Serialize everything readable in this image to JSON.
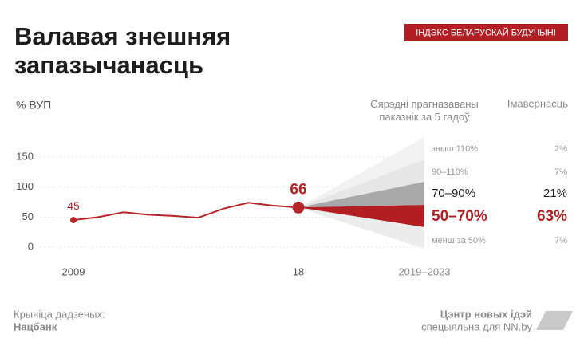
{
  "badge": "ІНДЭКС БЕЛАРУСКАЙ БУДУЧЫНІ",
  "source": {
    "label": "Крыніца дадзеных:",
    "name": "Нацбанк"
  },
  "credit": {
    "org": "Цэнтр новых ідэй",
    "note": "спецыяльна для NN.by"
  },
  "chart_data": {
    "type": "line",
    "title": "Валавая знешняя запазычанасць",
    "ylabel": "% ВУП",
    "categories": [
      "2009",
      null,
      null,
      null,
      null,
      null,
      null,
      null,
      null,
      "18"
    ],
    "values": [
      45,
      50,
      58,
      54,
      52,
      49,
      64,
      74,
      69,
      66
    ],
    "value_labels": {
      "0": "45",
      "9": "66"
    },
    "color": "#b5262b",
    "ylim": [
      0,
      150
    ],
    "yticks": [
      0,
      50,
      100,
      150
    ],
    "grid": true,
    "forecast": {
      "header": "Сярэдні прагназаваны паказнік за 5 гадоў",
      "probability_header": "Імавернасць",
      "period": "2019–2023",
      "scenarios": [
        {
          "label": "звыш 110%",
          "probability": 2,
          "probability_label": "2%",
          "color": "#f2f2f2"
        },
        {
          "label": "90–110%",
          "probability": 7,
          "probability_label": "7%",
          "color": "#e6e6e6"
        },
        {
          "label": "70–90%",
          "probability": 21,
          "probability_label": "21%",
          "color": "#a8a8a8"
        },
        {
          "label": "50–70%",
          "probability": 63,
          "probability_label": "63%",
          "color": "#b11f24"
        },
        {
          "label": "менш за 50%",
          "probability": 7,
          "probability_label": "7%",
          "color": "#ececec"
        }
      ]
    }
  }
}
